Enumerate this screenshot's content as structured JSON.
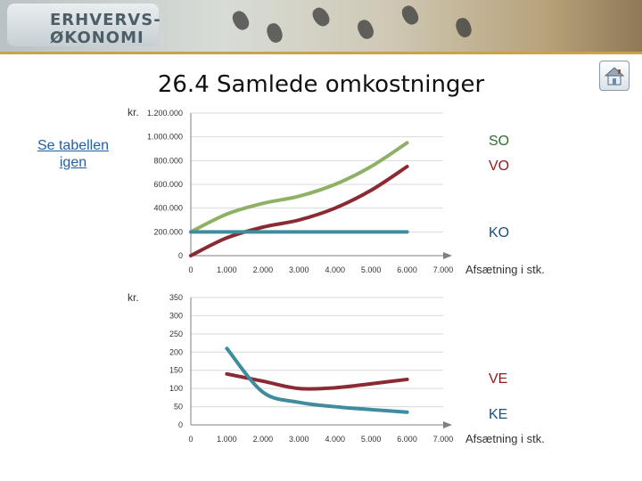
{
  "header": {
    "logo_line1": "ERHVERVS-",
    "logo_line2": "ØKONOMI"
  },
  "slide": {
    "title": "26.4 Samlede omkostninger",
    "side_link": "Se tabellen igen",
    "home_icon": "home-icon"
  },
  "chart_data": [
    {
      "type": "line",
      "ylabel": "kr.",
      "xlabel": "Afsætning i stk.",
      "xlim": [
        0,
        7000
      ],
      "ylim": [
        0,
        1200000
      ],
      "xticks": [
        "0",
        "1.000",
        "2.000",
        "3.000",
        "4.000",
        "5.000",
        "6.000",
        "7.000"
      ],
      "yticks": [
        "0",
        "200.000",
        "400.000",
        "600.000",
        "800.000",
        "1.000.000",
        "1.200.000"
      ],
      "grid": true,
      "legend": "right",
      "series": [
        {
          "name": "SO",
          "color": "#8fb166",
          "x": [
            0,
            1000,
            2000,
            3000,
            4000,
            5000,
            6000
          ],
          "values": [
            200000,
            350000,
            440000,
            500000,
            600000,
            750000,
            950000
          ]
        },
        {
          "name": "VO",
          "color": "#8a2a33",
          "x": [
            0,
            1000,
            2000,
            3000,
            4000,
            5000,
            6000
          ],
          "values": [
            0,
            150000,
            240000,
            300000,
            400000,
            550000,
            750000
          ]
        },
        {
          "name": "KO",
          "color": "#3f8c9e",
          "x": [
            0,
            1000,
            2000,
            3000,
            4000,
            5000,
            6000
          ],
          "values": [
            200000,
            200000,
            200000,
            200000,
            200000,
            200000,
            200000
          ]
        }
      ]
    },
    {
      "type": "line",
      "ylabel": "kr.",
      "xlabel": "Afsætning i stk.",
      "xlim": [
        0,
        7000
      ],
      "ylim": [
        0,
        350
      ],
      "xticks": [
        "0",
        "1.000",
        "2.000",
        "3.000",
        "4.000",
        "5.000",
        "6.000",
        "7.000"
      ],
      "yticks": [
        "0",
        "50",
        "100",
        "150",
        "200",
        "250",
        "300",
        "350"
      ],
      "grid": true,
      "legend": "right",
      "series": [
        {
          "name": "VE",
          "color": "#8a2a33",
          "x": [
            1000,
            2000,
            3000,
            4000,
            5000,
            6000
          ],
          "values": [
            140,
            120,
            100,
            102,
            113,
            125
          ]
        },
        {
          "name": "KE",
          "color": "#3f8c9e",
          "x": [
            1000,
            2000,
            3000,
            4000,
            5000,
            6000
          ],
          "values": [
            210,
            90,
            62,
            50,
            42,
            35
          ]
        }
      ]
    }
  ]
}
